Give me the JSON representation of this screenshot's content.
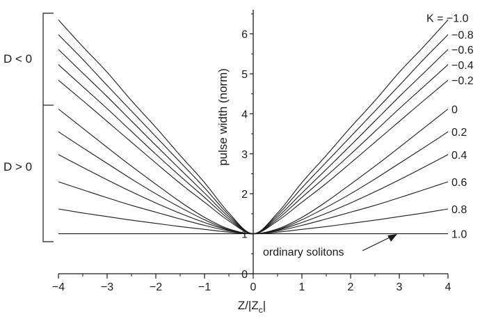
{
  "chart_data": {
    "type": "line",
    "xlabel_main": "Z/|Z",
    "xlabel_sub": "c",
    "xlabel_tail": "|",
    "ylabel": "pulse width (norm)",
    "xlim": [
      -4,
      4
    ],
    "ylim": [
      0,
      6.5
    ],
    "x_ticks": [
      -4,
      -3,
      -2,
      -1,
      0,
      1,
      2,
      3,
      4
    ],
    "x_tick_labels": [
      "−4",
      "−3",
      "−2",
      "−1",
      "0",
      "1",
      "2",
      "3",
      "4"
    ],
    "y_ticks": [
      0,
      1,
      2,
      3,
      4,
      5,
      6
    ],
    "y_tick_labels": [
      "0",
      "1",
      "2",
      "3",
      "4",
      "5",
      "6"
    ],
    "grid": false,
    "series": [
      {
        "name": "K = −1.0",
        "x": [
          -4,
          -3.5,
          -3,
          -2.5,
          -2,
          -1.5,
          -1,
          -0.5,
          0,
          0.5,
          1,
          1.5,
          2,
          2.5,
          3,
          3.5,
          4
        ],
        "values": [
          6.35,
          5.68,
          5.04,
          4.33,
          3.66,
          2.96,
          2.28,
          1.52,
          1.0,
          1.52,
          2.28,
          2.96,
          3.66,
          4.33,
          5.04,
          5.68,
          6.35
        ]
      },
      {
        "name": "−0.8",
        "x": [
          -4,
          -3.5,
          -3,
          -2.5,
          -2,
          -1.5,
          -1,
          -0.5,
          0,
          0.5,
          1,
          1.5,
          2,
          2.5,
          3,
          3.5,
          4
        ],
        "values": [
          5.98,
          5.36,
          4.71,
          4.07,
          3.43,
          2.79,
          2.15,
          1.47,
          1.0,
          1.47,
          2.15,
          2.79,
          3.43,
          4.07,
          4.71,
          5.36,
          5.98
        ]
      },
      {
        "name": "−0.6",
        "x": [
          -4,
          -3.5,
          -3,
          -2.5,
          -2,
          -1.5,
          -1,
          -0.5,
          0,
          0.5,
          1,
          1.5,
          2,
          2.5,
          3,
          3.5,
          4
        ],
        "values": [
          5.61,
          5.02,
          4.43,
          3.82,
          3.21,
          2.61,
          2.02,
          1.42,
          1.0,
          1.42,
          2.02,
          2.61,
          3.21,
          3.82,
          4.43,
          5.02,
          5.61
        ]
      },
      {
        "name": "−0.4",
        "x": [
          -4,
          -3.5,
          -3,
          -2.5,
          -2,
          -1.5,
          -1,
          -0.5,
          0,
          0.5,
          1,
          1.5,
          2,
          2.5,
          3,
          3.5,
          4
        ],
        "values": [
          5.23,
          4.68,
          4.13,
          3.56,
          2.99,
          2.44,
          1.91,
          1.37,
          1.0,
          1.37,
          1.91,
          2.44,
          2.99,
          3.56,
          4.13,
          4.68,
          5.23
        ]
      },
      {
        "name": "−0.2",
        "x": [
          -4,
          -3.5,
          -3,
          -2.5,
          -2,
          -1.5,
          -1,
          -0.5,
          0,
          0.5,
          1,
          1.5,
          2,
          2.5,
          3,
          3.5,
          4
        ],
        "values": [
          4.84,
          4.33,
          3.81,
          3.29,
          2.77,
          2.26,
          1.79,
          1.32,
          1.0,
          1.32,
          1.79,
          2.26,
          2.77,
          3.29,
          3.81,
          4.33,
          4.84
        ]
      },
      {
        "name": "0",
        "x": [
          -4,
          -3.5,
          -3,
          -2.5,
          -2,
          -1.5,
          -1,
          -0.5,
          0,
          0.5,
          1,
          1.5,
          2,
          2.5,
          3,
          3.5,
          4
        ],
        "values": [
          4.12,
          3.64,
          3.16,
          2.69,
          2.24,
          1.8,
          1.41,
          1.12,
          1.0,
          1.12,
          1.41,
          1.8,
          2.24,
          2.69,
          3.16,
          3.64,
          4.12
        ]
      },
      {
        "name": "0.2",
        "x": [
          -4,
          -3.5,
          -3,
          -2.5,
          -2,
          -1.5,
          -1,
          -0.5,
          0,
          0.5,
          1,
          1.5,
          2,
          2.5,
          3,
          3.5,
          4
        ],
        "values": [
          3.55,
          3.15,
          2.76,
          2.37,
          2.0,
          1.66,
          1.35,
          1.1,
          1.0,
          1.1,
          1.35,
          1.66,
          2.0,
          2.37,
          2.76,
          3.15,
          3.55
        ]
      },
      {
        "name": "0.4",
        "x": [
          -4,
          -3.5,
          -3,
          -2.5,
          -2,
          -1.5,
          -1,
          -0.5,
          0,
          0.5,
          1,
          1.5,
          2,
          2.5,
          3,
          3.5,
          4
        ],
        "values": [
          2.98,
          2.66,
          2.35,
          2.05,
          1.77,
          1.51,
          1.28,
          1.09,
          1.0,
          1.09,
          1.28,
          1.51,
          1.77,
          2.05,
          2.35,
          2.66,
          2.98
        ]
      },
      {
        "name": "0.6",
        "x": [
          -4,
          -3.5,
          -3,
          -2.5,
          -2,
          -1.5,
          -1,
          -0.5,
          0,
          0.5,
          1,
          1.5,
          2,
          2.5,
          3,
          3.5,
          4
        ],
        "values": [
          2.3,
          2.1,
          1.9,
          1.71,
          1.54,
          1.37,
          1.21,
          1.07,
          1.0,
          1.07,
          1.21,
          1.37,
          1.54,
          1.71,
          1.9,
          2.1,
          2.3
        ]
      },
      {
        "name": "0.8",
        "x": [
          -4,
          -3.5,
          -3,
          -2.5,
          -2,
          -1.5,
          -1,
          -0.5,
          0,
          0.5,
          1,
          1.5,
          2,
          2.5,
          3,
          3.5,
          4
        ],
        "values": [
          1.62,
          1.52,
          1.43,
          1.34,
          1.26,
          1.18,
          1.11,
          1.04,
          1.0,
          1.04,
          1.11,
          1.18,
          1.26,
          1.34,
          1.43,
          1.52,
          1.62
        ]
      },
      {
        "name": "1.0",
        "x": [
          -4,
          4
        ],
        "values": [
          1.0,
          1.0
        ]
      }
    ],
    "annotations": {
      "ordinary_solitons": "ordinary solitons",
      "d_negative": "D < 0",
      "d_positive": "D > 0"
    }
  }
}
